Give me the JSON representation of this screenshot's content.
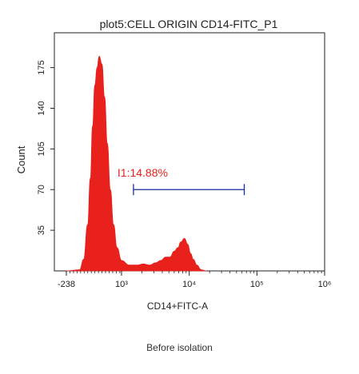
{
  "chart_data": {
    "type": "area",
    "title": "plot5:CELL ORIGIN CD14-FITC_P1",
    "xlabel": "CD14+FITC-A",
    "ylabel": "Count",
    "x_scale": "biexponential",
    "x_ticks": [
      "-238",
      "10³",
      "10⁴",
      "10⁵",
      "10⁶"
    ],
    "x_tick_values": [
      -238,
      1000,
      10000,
      100000,
      1000000
    ],
    "y_ticks": [
      35,
      70,
      105,
      140,
      175
    ],
    "ylim": [
      0,
      205
    ],
    "fill_color": "#e8211c",
    "series": [
      {
        "x": [
          -238,
          60,
          150,
          240,
          300,
          350,
          400,
          450,
          500,
          560,
          620,
          680,
          750,
          820,
          900,
          1000,
          1300,
          1700,
          2100,
          2600,
          3200,
          3800,
          4500,
          5200,
          6000,
          6800,
          7500,
          8500,
          9500,
          10500,
          11500,
          13000,
          15000,
          18000
        ],
        "y": [
          0,
          1,
          10,
          40,
          80,
          125,
          160,
          175,
          185,
          178,
          150,
          110,
          70,
          40,
          20,
          9,
          5,
          5,
          6,
          5,
          7,
          9,
          12,
          12,
          17,
          20,
          25,
          28,
          23,
          15,
          10,
          5,
          1,
          0
        ]
      }
    ],
    "gate": {
      "label": "I1:14.88%",
      "x_start": 1500,
      "x_end": 65000,
      "y": 70,
      "label_color": "#e8211c",
      "line_color": "#1a2f9c"
    }
  },
  "caption": "Before isolation"
}
